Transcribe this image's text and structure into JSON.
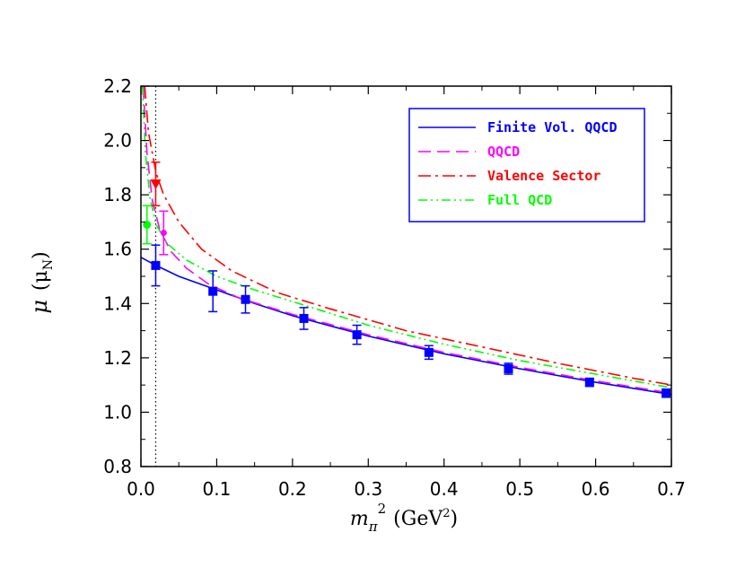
{
  "chart_data": {
    "type": "line",
    "title": "",
    "xlabel": {
      "main": "m",
      "sub": "π",
      "sup": "2",
      "unit": "(GeV",
      "unit_sup": "2",
      "unit_end": ")"
    },
    "ylabel": {
      "main": "μ",
      "open": "(μ",
      "sub": "N",
      "close": ")"
    },
    "xlim": [
      0.0,
      0.7
    ],
    "ylim": [
      0.8,
      2.2
    ],
    "x_ticks": [
      "0.0",
      "0.1",
      "0.2",
      "0.3",
      "0.4",
      "0.5",
      "0.6",
      "0.7"
    ],
    "y_ticks": [
      "0.8",
      "1.0",
      "1.2",
      "1.4",
      "1.6",
      "1.8",
      "2.0",
      "2.2"
    ],
    "grid": false,
    "legend_position": "top-right",
    "vertical_reference_x": 0.0195,
    "series": [
      {
        "name": "Finite Vol. QQCD",
        "color": "#0000ff",
        "dash": "solid",
        "x": [
          0.0,
          0.02,
          0.05,
          0.1,
          0.15,
          0.2,
          0.3,
          0.4,
          0.5,
          0.6,
          0.7
        ],
        "y": [
          1.57,
          1.54,
          1.5,
          1.45,
          1.4,
          1.355,
          1.28,
          1.215,
          1.16,
          1.11,
          1.065
        ]
      },
      {
        "name": "QQCD",
        "color": "#ff00ff",
        "dash": "dashed",
        "x": [
          0.003,
          0.008,
          0.015,
          0.025,
          0.04,
          0.06,
          0.09,
          0.13,
          0.2,
          0.3,
          0.4,
          0.5,
          0.6,
          0.7
        ],
        "y": [
          2.2,
          1.95,
          1.78,
          1.67,
          1.59,
          1.53,
          1.47,
          1.42,
          1.36,
          1.285,
          1.22,
          1.165,
          1.115,
          1.07
        ]
      },
      {
        "name": "Valence Sector",
        "color": "#ff0000",
        "dash": "dashdot",
        "x": [
          0.005,
          0.01,
          0.02,
          0.03,
          0.05,
          0.08,
          0.12,
          0.18,
          0.25,
          0.35,
          0.45,
          0.55,
          0.65,
          0.7
        ],
        "y": [
          2.2,
          2.03,
          1.88,
          1.8,
          1.7,
          1.6,
          1.52,
          1.44,
          1.38,
          1.3,
          1.24,
          1.18,
          1.125,
          1.1
        ]
      },
      {
        "name": "Full QCD",
        "color": "#00ff00",
        "dash": "dashdotdot",
        "x": [
          0.002,
          0.006,
          0.012,
          0.02,
          0.035,
          0.06,
          0.1,
          0.15,
          0.22,
          0.3,
          0.4,
          0.5,
          0.6,
          0.7
        ],
        "y": [
          2.2,
          1.95,
          1.79,
          1.69,
          1.62,
          1.56,
          1.5,
          1.45,
          1.39,
          1.32,
          1.25,
          1.19,
          1.14,
          1.09
        ]
      }
    ],
    "points": [
      {
        "x": 0.0195,
        "y": 1.54,
        "err": 0.075,
        "color": "#0000ff",
        "marker": "square"
      },
      {
        "x": 0.095,
        "y": 1.445,
        "err": 0.075,
        "color": "#0000ff",
        "marker": "square"
      },
      {
        "x": 0.138,
        "y": 1.415,
        "err": 0.05,
        "color": "#0000ff",
        "marker": "square"
      },
      {
        "x": 0.215,
        "y": 1.345,
        "err": 0.04,
        "color": "#0000ff",
        "marker": "square"
      },
      {
        "x": 0.285,
        "y": 1.285,
        "err": 0.035,
        "color": "#0000ff",
        "marker": "square"
      },
      {
        "x": 0.38,
        "y": 1.22,
        "err": 0.025,
        "color": "#0000ff",
        "marker": "square"
      },
      {
        "x": 0.485,
        "y": 1.16,
        "err": 0.02,
        "color": "#0000ff",
        "marker": "square"
      },
      {
        "x": 0.592,
        "y": 1.11,
        "err": 0.015,
        "color": "#0000ff",
        "marker": "square"
      },
      {
        "x": 0.693,
        "y": 1.07,
        "err": 0.015,
        "color": "#0000ff",
        "marker": "square"
      },
      {
        "x": 0.0195,
        "y": 1.84,
        "err": 0.08,
        "color": "#ff0000",
        "marker": "triangle-down"
      },
      {
        "x": 0.03,
        "y": 1.66,
        "err": 0.08,
        "color": "#ff00ff",
        "marker": "circle"
      },
      {
        "x": 0.008,
        "y": 1.69,
        "err": 0.07,
        "color": "#00ff00",
        "marker": "circle"
      }
    ]
  }
}
